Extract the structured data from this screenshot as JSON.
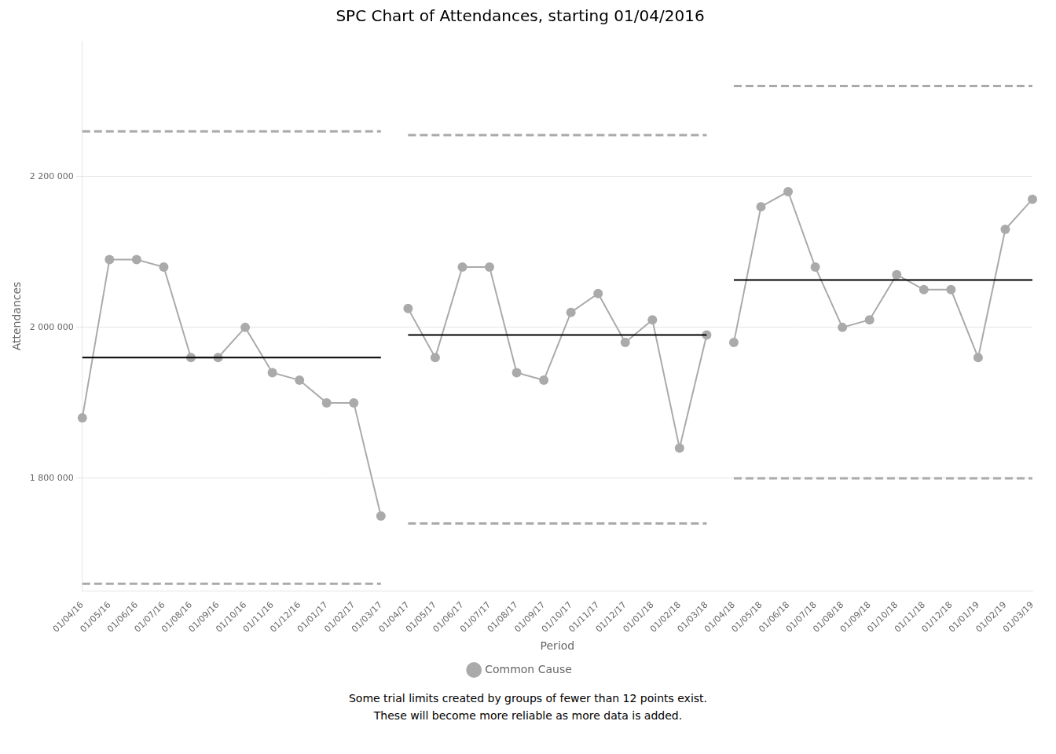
{
  "chart_data": {
    "type": "line",
    "title": "SPC Chart of Attendances, starting 01/04/2016",
    "x_label": "Period",
    "y_label": "Attendances",
    "caption": [
      "Some trial limits created by groups of fewer than 12 points exist.",
      "These will become more reliable as more data is added."
    ],
    "categories": [
      "01/04/16",
      "01/05/16",
      "01/06/16",
      "01/07/16",
      "01/08/16",
      "01/09/16",
      "01/10/16",
      "01/11/16",
      "01/12/16",
      "01/01/17",
      "01/02/17",
      "01/03/17",
      "01/04/17",
      "01/05/17",
      "01/06/17",
      "01/07/17",
      "01/08/17",
      "01/09/17",
      "01/10/17",
      "01/11/17",
      "01/12/17",
      "01/01/18",
      "01/02/18",
      "01/03/18",
      "01/04/18",
      "01/05/18",
      "01/06/18",
      "01/07/18",
      "01/08/18",
      "01/09/18",
      "01/10/18",
      "01/11/18",
      "01/12/18",
      "01/01/19",
      "01/02/19",
      "01/03/19"
    ],
    "sections": [
      {
        "start": "01/04/16",
        "end": "01/03/17"
      },
      {
        "start": "01/04/17",
        "end": "01/03/18"
      },
      {
        "start": "01/04/18",
        "end": "01/03/19"
      }
    ],
    "series": [
      {
        "name": "Common Cause",
        "type": "line",
        "color": "#aaaaaa",
        "marker": "circle",
        "line_style": "solid",
        "values": [
          1880000,
          2090000,
          2090000,
          2080000,
          1960000,
          1960000,
          2000000,
          1940000,
          1930000,
          1900000,
          1900000,
          1750000,
          2025000,
          1960000,
          2080000,
          2080000,
          1940000,
          1930000,
          2020000,
          2045000,
          1980000,
          2010000,
          1840000,
          1990000,
          1980000,
          2160000,
          2180000,
          2080000,
          2000000,
          2010000,
          2070000,
          2050000,
          2050000,
          1960000,
          2130000,
          2170000
        ]
      },
      {
        "type": "line",
        "color": "#000000",
        "line_style": "solid",
        "values": [
          1960000,
          1960000,
          1960000,
          1960000,
          1960000,
          1960000,
          1960000,
          1960000,
          1960000,
          1960000,
          1960000,
          1960000,
          1990000,
          1990000,
          1990000,
          1990000,
          1990000,
          1990000,
          1990000,
          1990000,
          1990000,
          1990000,
          1990000,
          1990000,
          2063000,
          2063000,
          2063000,
          2063000,
          2063000,
          2063000,
          2063000,
          2063000,
          2063000,
          2063000,
          2063000,
          2063000
        ]
      },
      {
        "type": "line",
        "color": "#aaaaaa",
        "line_style": "dashed",
        "values": [
          2260000,
          2260000,
          2260000,
          2260000,
          2260000,
          2260000,
          2260000,
          2260000,
          2260000,
          2260000,
          2260000,
          2260000,
          2255000,
          2255000,
          2255000,
          2255000,
          2255000,
          2255000,
          2255000,
          2255000,
          2255000,
          2255000,
          2255000,
          2255000,
          2320000,
          2320000,
          2320000,
          2320000,
          2320000,
          2320000,
          2320000,
          2320000,
          2320000,
          2320000,
          2320000,
          2320000
        ]
      },
      {
        "type": "line",
        "color": "#aaaaaa",
        "line_style": "dashed",
        "values": [
          1660000,
          1660000,
          1660000,
          1660000,
          1660000,
          1660000,
          1660000,
          1660000,
          1660000,
          1660000,
          1660000,
          1660000,
          1740000,
          1740000,
          1740000,
          1740000,
          1740000,
          1740000,
          1740000,
          1740000,
          1740000,
          1740000,
          1740000,
          1740000,
          1800000,
          1800000,
          1800000,
          1800000,
          1800000,
          1800000,
          1800000,
          1800000,
          1800000,
          1800000,
          1800000,
          1800000
        ]
      }
    ],
    "ylim": [
      1650000,
      2380000
    ],
    "yticks": [
      {
        "value": 1800000,
        "label": "1 800 000"
      },
      {
        "value": 2000000,
        "label": "2 000 000"
      },
      {
        "value": 2200000,
        "label": "2 200 000"
      }
    ],
    "grid": "y",
    "legend": "bottom"
  }
}
